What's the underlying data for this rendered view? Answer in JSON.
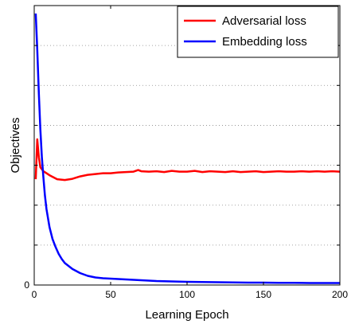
{
  "chart_data": {
    "type": "line",
    "title": "",
    "xlabel": "Learning Epoch",
    "ylabel": "Objectives",
    "xlim": [
      0,
      200
    ],
    "ylim": [
      0,
      7
    ],
    "xticks": [
      0,
      50,
      100,
      150,
      200
    ],
    "xtick_labels": [
      "0",
      "50",
      "100",
      "150",
      "200"
    ],
    "yticks": [
      0
    ],
    "ytick_labels": [
      "0"
    ],
    "grid": "dotted horizontal",
    "legend_position": "top-right",
    "series": [
      {
        "name": "Adversarial loss",
        "color": "#ff0000",
        "x": [
          1,
          2,
          3,
          4,
          6,
          8,
          10,
          15,
          20,
          25,
          30,
          35,
          40,
          45,
          50,
          55,
          60,
          65,
          68,
          70,
          75,
          80,
          85,
          90,
          95,
          100,
          105,
          110,
          115,
          120,
          125,
          130,
          135,
          140,
          145,
          150,
          155,
          160,
          165,
          170,
          175,
          180,
          185,
          190,
          195,
          200
        ],
        "y": [
          2.65,
          3.65,
          3.2,
          2.95,
          2.85,
          2.8,
          2.75,
          2.65,
          2.63,
          2.66,
          2.72,
          2.76,
          2.78,
          2.8,
          2.8,
          2.82,
          2.83,
          2.84,
          2.88,
          2.85,
          2.84,
          2.85,
          2.83,
          2.86,
          2.84,
          2.84,
          2.86,
          2.83,
          2.85,
          2.84,
          2.83,
          2.85,
          2.83,
          2.84,
          2.85,
          2.83,
          2.84,
          2.85,
          2.84,
          2.84,
          2.85,
          2.84,
          2.85,
          2.84,
          2.85,
          2.84
        ]
      },
      {
        "name": "Embedding loss",
        "color": "#0000ff",
        "x": [
          1,
          2,
          3,
          4,
          5,
          6,
          7,
          8,
          10,
          12,
          14,
          16,
          18,
          20,
          25,
          30,
          35,
          40,
          45,
          50,
          55,
          60,
          65,
          70,
          80,
          90,
          100,
          110,
          120,
          130,
          140,
          150,
          160,
          170,
          180,
          190,
          200
        ],
        "y": [
          6.8,
          5.9,
          4.8,
          3.9,
          3.2,
          2.7,
          2.25,
          1.9,
          1.45,
          1.15,
          0.95,
          0.78,
          0.65,
          0.55,
          0.4,
          0.3,
          0.23,
          0.19,
          0.17,
          0.16,
          0.15,
          0.14,
          0.13,
          0.12,
          0.1,
          0.09,
          0.08,
          0.075,
          0.07,
          0.065,
          0.06,
          0.06,
          0.055,
          0.055,
          0.05,
          0.05,
          0.05
        ]
      }
    ]
  }
}
